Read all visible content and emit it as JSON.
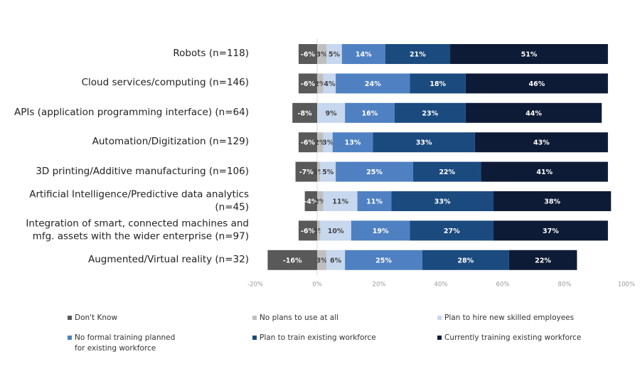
{
  "chart_data": {
    "type": "diverging-bar",
    "categories": [
      "Robots (n=118)",
      "Cloud services/computing (n=146)",
      "APIs (application programming interface) (n=64)",
      "Automation/Digitization (n=129)",
      "3D printing/Additive manufacturing (n=106)",
      "Artificial Intelligence/Predictive data analytics (n=45)",
      "Integration of smart, connected machines and mfg. assets with the wider enterprise (n=97)",
      "Augmented/Virtual reality (n=32)"
    ],
    "series": [
      {
        "name": "Don't Know",
        "color": "#595959",
        "values": [
          -6,
          -6,
          -8,
          -6,
          -7,
          -4,
          -6,
          -16
        ],
        "value_labels": [
          "-6%",
          "-6%",
          "-8%",
          "-6%",
          "-7%",
          "-4%",
          "-6%",
          "-16%"
        ]
      },
      {
        "name": "No plans to use at all",
        "color": "#bfbfbf",
        "values": [
          3,
          2,
          0,
          2,
          1,
          2,
          1,
          3
        ],
        "value_labels": [
          "3%",
          "2%",
          null,
          "2%",
          "1%",
          "2%",
          "1%",
          "3%"
        ]
      },
      {
        "name": "Plan to hire new skilled employees",
        "color": "#c6d7ee",
        "values": [
          5,
          4,
          9,
          3,
          5,
          11,
          10,
          6
        ],
        "value_labels": [
          "5%",
          "4%",
          "9%",
          "3%",
          "5%",
          "11%",
          "10%",
          "6%"
        ]
      },
      {
        "name": "No formal training planned for existing workforce",
        "color": "#4f81c2",
        "values": [
          14,
          24,
          16,
          13,
          25,
          11,
          19,
          25
        ],
        "value_labels": [
          "14%",
          "24%",
          "16%",
          "13%",
          "25%",
          "11%",
          "19%",
          "25%"
        ]
      },
      {
        "name": "Plan to train existing workforce",
        "color": "#1b4a7e",
        "values": [
          21,
          18,
          23,
          33,
          22,
          33,
          27,
          28
        ],
        "value_labels": [
          "21%",
          "18%",
          "23%",
          "33%",
          "22%",
          "33%",
          "27%",
          "28%"
        ]
      },
      {
        "name": "Currently training existing workforce",
        "color": "#0e1b36",
        "values": [
          51,
          46,
          44,
          43,
          41,
          38,
          37,
          22
        ],
        "value_labels": [
          "51%",
          "46%",
          "44%",
          "43%",
          "41%",
          "38%",
          "37%",
          "22%"
        ]
      }
    ],
    "xlim": [
      -20,
      100
    ],
    "xticks": [
      {
        "value": -20,
        "label": "-20%"
      },
      {
        "value": 0,
        "label": "0%"
      },
      {
        "value": 20,
        "label": "20%"
      },
      {
        "value": 40,
        "label": "40%"
      },
      {
        "value": 60,
        "label": "60%"
      },
      {
        "value": 80,
        "label": "80%"
      },
      {
        "value": 100,
        "label": "100%"
      }
    ],
    "grid": false
  }
}
